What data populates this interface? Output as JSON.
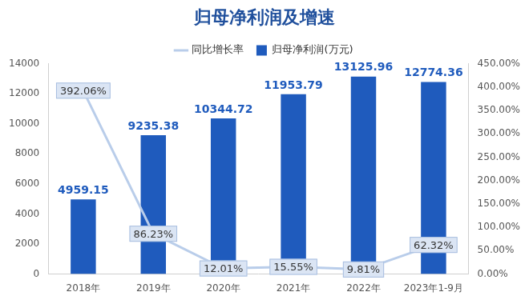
{
  "chart_data": {
    "type": "bar",
    "title": "归母净利润及增速",
    "categories": [
      "2018年",
      "2019年",
      "2020年",
      "2021年",
      "2022年",
      "2023年1-9月"
    ],
    "series": [
      {
        "name": "归母净利润(万元)",
        "type": "bar",
        "color": "#1f5bbd",
        "values": [
          4959.15,
          9235.38,
          10344.72,
          11953.79,
          13125.96,
          12774.36
        ]
      },
      {
        "name": "同比增长率",
        "type": "line",
        "axis": "y2",
        "color": "#b9cdea",
        "marker": "none",
        "values": [
          392.06,
          86.23,
          12.01,
          15.55,
          9.81,
          62.32
        ],
        "value_labels": [
          "392.06%",
          "86.23%",
          "12.01%",
          "15.55%",
          "9.81%",
          "62.32%"
        ]
      }
    ],
    "ylim": [
      0,
      14000
    ],
    "yticks": [
      0,
      2000,
      4000,
      6000,
      8000,
      10000,
      12000,
      14000
    ],
    "y2lim": [
      0,
      450
    ],
    "y2ticks": [
      {
        "value": 0,
        "label": "0.00%"
      },
      {
        "value": 50,
        "label": "50.00%"
      },
      {
        "value": 100,
        "label": "100.00%"
      },
      {
        "value": 150,
        "label": "150.00%"
      },
      {
        "value": 200,
        "label": "200.00%"
      },
      {
        "value": 250,
        "label": "250.00%"
      },
      {
        "value": 300,
        "label": "300.00%"
      },
      {
        "value": 350,
        "label": "350.00%"
      },
      {
        "value": 400,
        "label": "400.00%"
      },
      {
        "value": 450,
        "label": "450.00%"
      }
    ],
    "grid": false,
    "legend": "top",
    "data_labels": true
  }
}
